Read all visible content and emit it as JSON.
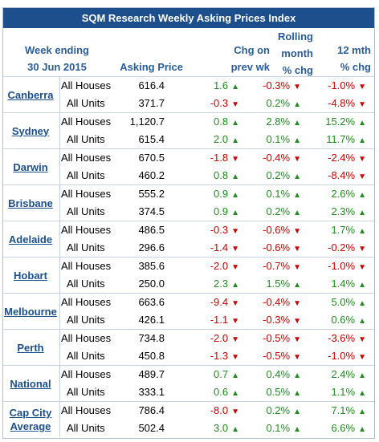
{
  "table": {
    "title": "SQM Research Weekly Asking Prices Index",
    "headers": {
      "week_line1": "Week ending",
      "week_line2": "30 Jun 2015",
      "asking_price": "Asking Price",
      "chg_wk_line1": "Chg on",
      "chg_wk_line2": "prev wk",
      "rolling_line1": "Rolling",
      "rolling_line2": "month",
      "rolling_line3": "% chg",
      "twelve_line1": "12 mth",
      "twelve_line2": "% chg"
    },
    "colors": {
      "up": "#228b22",
      "down": "#cc0000",
      "header_bg": "#1c4f8b",
      "header_text": "#2a5d9a"
    },
    "groups": [
      {
        "city": "Canberra",
        "rows": [
          {
            "type": "All Houses",
            "price": "616.4",
            "chg_wk": "1.6",
            "chg_wk_dir": "up",
            "rolling": "-0.3%",
            "rolling_dir": "down",
            "twelve": "-1.0%",
            "twelve_dir": "down"
          },
          {
            "type": "All Units",
            "price": "371.7",
            "chg_wk": "-0.3",
            "chg_wk_dir": "down",
            "rolling": "0.2%",
            "rolling_dir": "up",
            "twelve": "-4.8%",
            "twelve_dir": "down"
          }
        ]
      },
      {
        "city": "Sydney",
        "rows": [
          {
            "type": "All Houses",
            "price": "1,120.7",
            "chg_wk": "0.8",
            "chg_wk_dir": "up",
            "rolling": "2.8%",
            "rolling_dir": "up",
            "twelve": "15.2%",
            "twelve_dir": "up"
          },
          {
            "type": "All Units",
            "price": "615.4",
            "chg_wk": "2.0",
            "chg_wk_dir": "up",
            "rolling": "0.1%",
            "rolling_dir": "up",
            "twelve": "11.7%",
            "twelve_dir": "up"
          }
        ]
      },
      {
        "city": "Darwin",
        "rows": [
          {
            "type": "All Houses",
            "price": "670.5",
            "chg_wk": "-1.8",
            "chg_wk_dir": "down",
            "rolling": "-0.4%",
            "rolling_dir": "down",
            "twelve": "-2.4%",
            "twelve_dir": "down"
          },
          {
            "type": "All Units",
            "price": "460.2",
            "chg_wk": "0.8",
            "chg_wk_dir": "up",
            "rolling": "0.2%",
            "rolling_dir": "up",
            "twelve": "-8.4%",
            "twelve_dir": "down"
          }
        ]
      },
      {
        "city": "Brisbane",
        "rows": [
          {
            "type": "All Houses",
            "price": "555.2",
            "chg_wk": "0.9",
            "chg_wk_dir": "up",
            "rolling": "0.1%",
            "rolling_dir": "up",
            "twelve": "2.6%",
            "twelve_dir": "up"
          },
          {
            "type": "All Units",
            "price": "374.5",
            "chg_wk": "0.9",
            "chg_wk_dir": "up",
            "rolling": "0.2%",
            "rolling_dir": "up",
            "twelve": "2.3%",
            "twelve_dir": "up"
          }
        ]
      },
      {
        "city": "Adelaide",
        "rows": [
          {
            "type": "All Houses",
            "price": "486.5",
            "chg_wk": "-0.3",
            "chg_wk_dir": "down",
            "rolling": "-0.6%",
            "rolling_dir": "down",
            "twelve": "1.7%",
            "twelve_dir": "up"
          },
          {
            "type": "All Units",
            "price": "296.6",
            "chg_wk": "-1.4",
            "chg_wk_dir": "down",
            "rolling": "-0.6%",
            "rolling_dir": "down",
            "twelve": "-0.2%",
            "twelve_dir": "down"
          }
        ]
      },
      {
        "city": "Hobart",
        "rows": [
          {
            "type": "All Houses",
            "price": "385.6",
            "chg_wk": "-2.0",
            "chg_wk_dir": "down",
            "rolling": "-0.7%",
            "rolling_dir": "down",
            "twelve": "-1.0%",
            "twelve_dir": "down"
          },
          {
            "type": "All Units",
            "price": "250.0",
            "chg_wk": "2.3",
            "chg_wk_dir": "up",
            "rolling": "1.5%",
            "rolling_dir": "up",
            "twelve": "1.4%",
            "twelve_dir": "up"
          }
        ]
      },
      {
        "city": "Melbourne",
        "rows": [
          {
            "type": "All Houses",
            "price": "663.6",
            "chg_wk": "-9.4",
            "chg_wk_dir": "down",
            "rolling": "-0.4%",
            "rolling_dir": "down",
            "twelve": "5.0%",
            "twelve_dir": "up"
          },
          {
            "type": "All Units",
            "price": "426.1",
            "chg_wk": "-1.1",
            "chg_wk_dir": "down",
            "rolling": "-0.3%",
            "rolling_dir": "down",
            "twelve": "0.6%",
            "twelve_dir": "up"
          }
        ]
      },
      {
        "city": "Perth",
        "rows": [
          {
            "type": "All Houses",
            "price": "734.8",
            "chg_wk": "-2.0",
            "chg_wk_dir": "down",
            "rolling": "-0.5%",
            "rolling_dir": "down",
            "twelve": "-3.6%",
            "twelve_dir": "down"
          },
          {
            "type": "All Units",
            "price": "450.8",
            "chg_wk": "-1.3",
            "chg_wk_dir": "down",
            "rolling": "-0.5%",
            "rolling_dir": "down",
            "twelve": "-1.0%",
            "twelve_dir": "down"
          }
        ]
      },
      {
        "city": "National",
        "rows": [
          {
            "type": "All Houses",
            "price": "489.7",
            "chg_wk": "0.7",
            "chg_wk_dir": "up",
            "rolling": "0.4%",
            "rolling_dir": "up",
            "twelve": "2.4%",
            "twelve_dir": "up"
          },
          {
            "type": "All Units",
            "price": "333.1",
            "chg_wk": "0.6",
            "chg_wk_dir": "up",
            "rolling": "0.5%",
            "rolling_dir": "up",
            "twelve": "1.1%",
            "twelve_dir": "up"
          }
        ]
      },
      {
        "city": "Cap City\nAverage",
        "rows": [
          {
            "type": "All Houses",
            "price": "786.4",
            "chg_wk": "-8.0",
            "chg_wk_dir": "down",
            "rolling": "0.2%",
            "rolling_dir": "up",
            "twelve": "7.1%",
            "twelve_dir": "up"
          },
          {
            "type": "All Units",
            "price": "502.4",
            "chg_wk": "3.0",
            "chg_wk_dir": "up",
            "rolling": "0.1%",
            "rolling_dir": "up",
            "twelve": "6.6%",
            "twelve_dir": "up"
          }
        ]
      }
    ]
  }
}
